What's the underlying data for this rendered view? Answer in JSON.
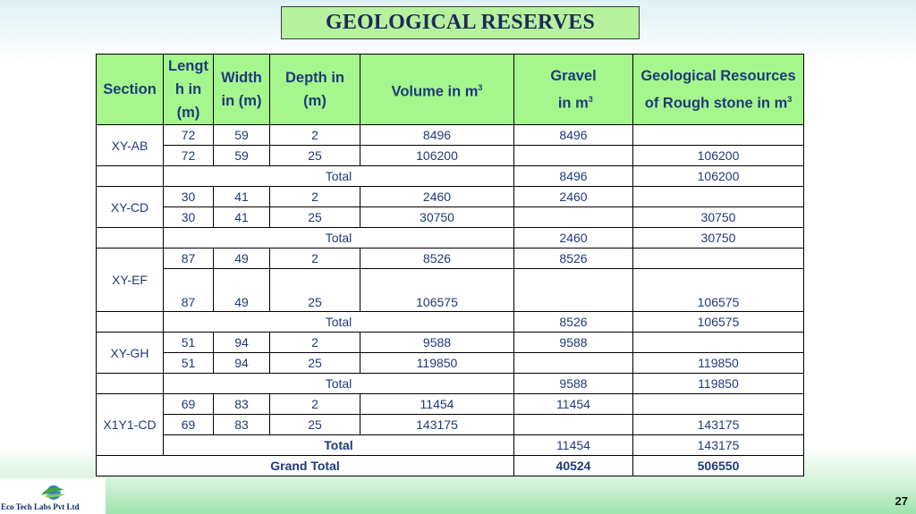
{
  "title": "GEOLOGICAL RESERVES",
  "headers": {
    "section": "Section",
    "length": "Lengt h in (m)",
    "width": "Width in (m)",
    "depth": "Depth in (m)",
    "volume": "Volume in m³",
    "gravel": "Gravel in m³",
    "resources": "Geological Resources of Rough stone in m³"
  },
  "sections": [
    {
      "name": "XY-AB",
      "rows": [
        {
          "length": "72",
          "width": "59",
          "depth": "2",
          "volume": "8496",
          "gravel": "8496",
          "resources": ""
        },
        {
          "length": "72",
          "width": "59",
          "depth": "25",
          "volume": "106200",
          "gravel": "",
          "resources": "106200"
        }
      ],
      "total": {
        "label": "Total",
        "gravel": "8496",
        "resources": "106200"
      }
    },
    {
      "name": "XY-CD",
      "rows": [
        {
          "length": "30",
          "width": "41",
          "depth": "2",
          "volume": "2460",
          "gravel": "2460",
          "resources": ""
        },
        {
          "length": "30",
          "width": "41",
          "depth": "25",
          "volume": "30750",
          "gravel": "",
          "resources": "30750"
        }
      ],
      "total": {
        "label": "Total",
        "gravel": "2460",
        "resources": "30750"
      }
    },
    {
      "name": "XY-EF",
      "rows": [
        {
          "length": "87",
          "width": "49",
          "depth": "2",
          "volume": "8526",
          "gravel": "8526",
          "resources": ""
        },
        {
          "length": "87",
          "width": "49",
          "depth": "25",
          "volume": "106575",
          "gravel": "",
          "resources": "106575"
        }
      ],
      "total": {
        "label": "Total",
        "gravel": "8526",
        "resources": "106575"
      }
    },
    {
      "name": "XY-GH",
      "rows": [
        {
          "length": "51",
          "width": "94",
          "depth": "2",
          "volume": "9588",
          "gravel": "9588",
          "resources": ""
        },
        {
          "length": "51",
          "width": "94",
          "depth": "25",
          "volume": "119850",
          "gravel": "",
          "resources": "119850"
        }
      ],
      "total": {
        "label": "Total",
        "gravel": "9588",
        "resources": "119850"
      }
    },
    {
      "name": "X1Y1-CD",
      "rows": [
        {
          "length": "69",
          "width": "83",
          "depth": "2",
          "volume": "11454",
          "gravel": "11454",
          "resources": ""
        },
        {
          "length": "69",
          "width": "83",
          "depth": "25",
          "volume": "143175",
          "gravel": "",
          "resources": "143175"
        }
      ],
      "total": {
        "label": "Total",
        "gravel": "11454",
        "resources": "143175"
      }
    }
  ],
  "grand_total": {
    "label": "Grand Total",
    "gravel": "40524",
    "resources": "506550"
  },
  "footer": {
    "logo_text": "Eco Tech Labs Pvt Ltd",
    "logo_icon": "globe-leaf-logo",
    "page_number": "27"
  },
  "colors": {
    "title_bg": "#b6f29e",
    "header_bg": "#a6f68e",
    "text": "#1f3a7a",
    "title_text": "#1e2a5a"
  }
}
